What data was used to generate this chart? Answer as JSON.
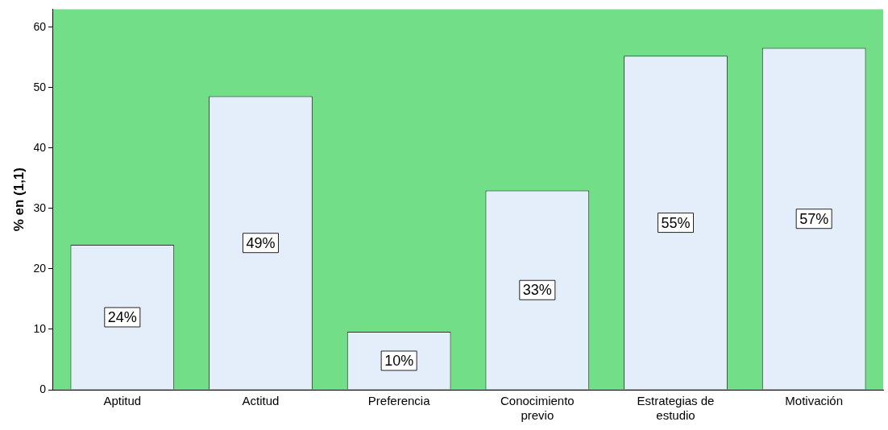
{
  "chart_data": {
    "type": "bar",
    "ylabel": "% en (1,1)",
    "categories": [
      "Aptitud",
      "Actitud",
      "Preferencia",
      "Conocimiento previo",
      "Estrategias de estudio",
      "Motivación"
    ],
    "values": [
      24,
      48.6,
      9.6,
      33,
      55.3,
      56.6
    ],
    "value_labels": [
      "24%",
      "49%",
      "10%",
      "33%",
      "55%",
      "57%"
    ],
    "color": "#e3eefa",
    "ylim": [
      0,
      63
    ],
    "yticks": [
      0,
      10,
      20,
      30,
      40,
      50,
      60
    ],
    "grid": false,
    "legend": false
  }
}
